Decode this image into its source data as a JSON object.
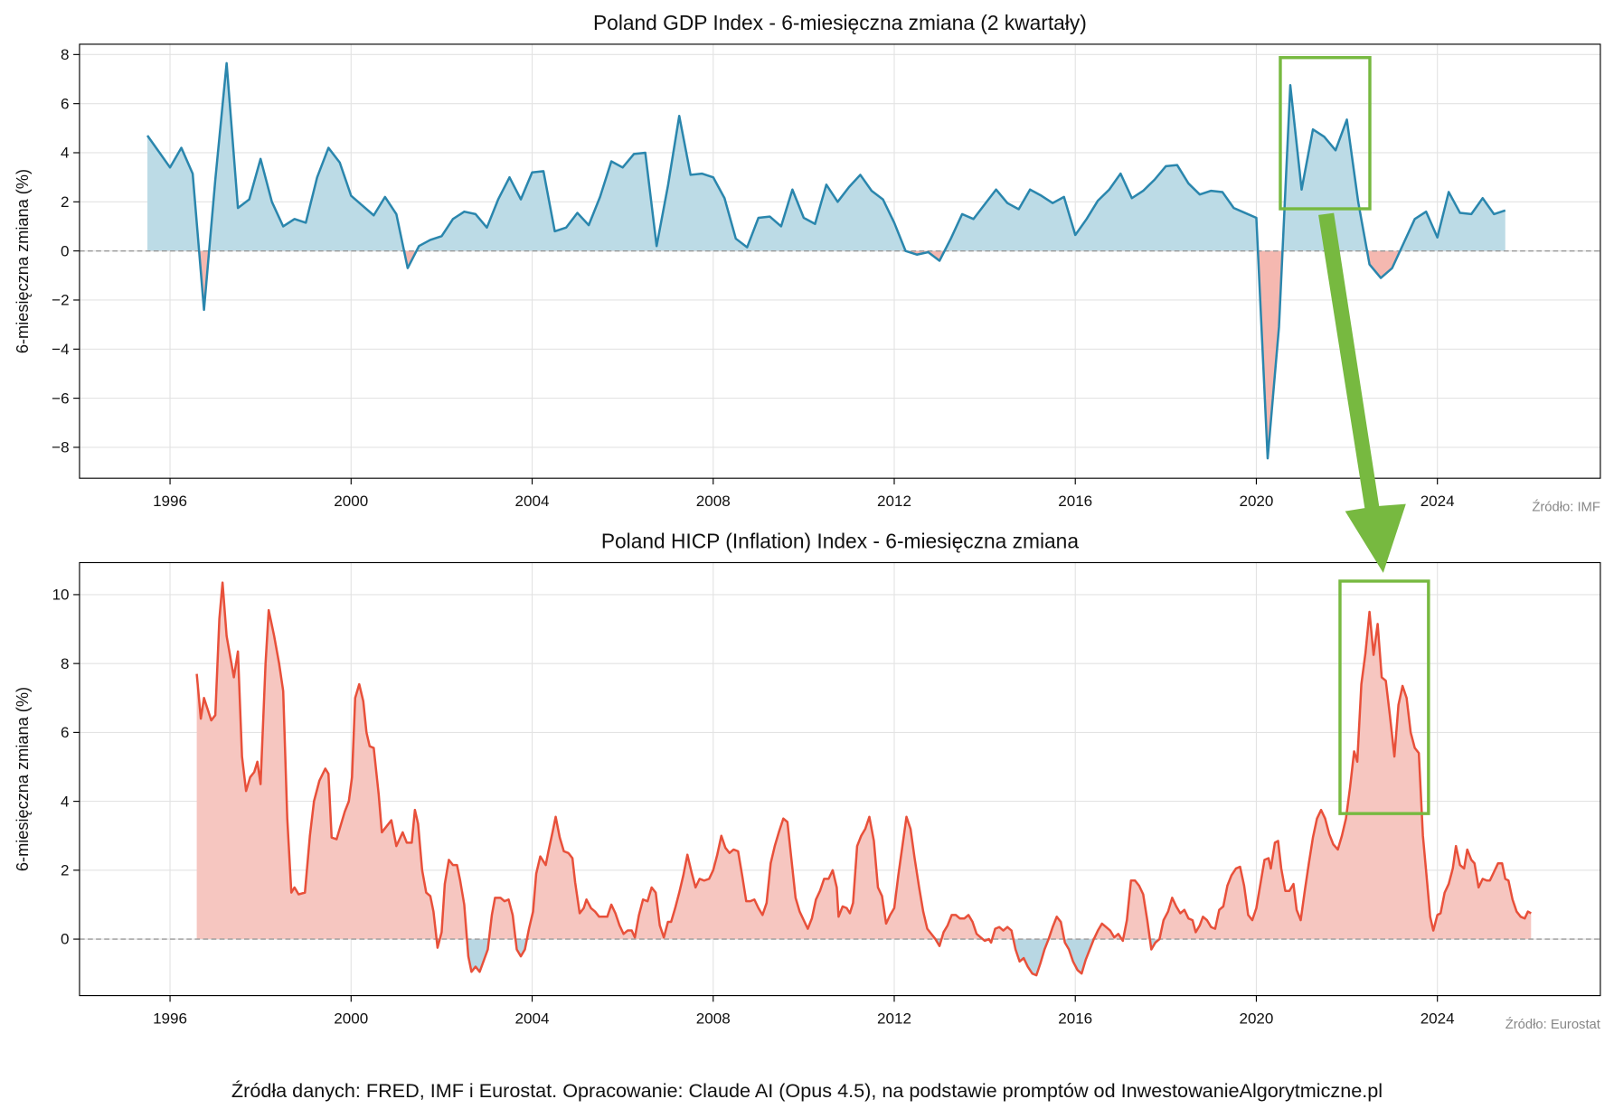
{
  "chart_data": [
    {
      "type": "line",
      "title": "Poland GDP Index - 6-miesięczna zmiana (2 kwartały)",
      "y_label": "6-miesięczna zmiana (%)",
      "source": "Źródło: IMF",
      "color": "#2a86ad",
      "fill_positive": "#bcdbe6",
      "fill_negative": "#f5b8b0",
      "xlim": [
        1994.0,
        2027.6
      ],
      "ylim": [
        -9.26,
        8.42
      ],
      "xticks": [
        1996,
        2000,
        2004,
        2008,
        2012,
        2016,
        2020,
        2024
      ],
      "yticks": [
        {
          "value": -8,
          "label": "−8"
        },
        {
          "value": -6,
          "label": "−6"
        },
        {
          "value": -4,
          "label": "−4"
        },
        {
          "value": -2,
          "label": "−2"
        },
        0,
        2,
        4,
        6,
        8
      ],
      "grid": true,
      "reference_line": 0,
      "x": [
        1995.5,
        1995.75,
        1996,
        1996.25,
        1996.5,
        1996.75,
        1997,
        1997.25,
        1997.5,
        1997.75,
        1998,
        1998.25,
        1998.5,
        1998.75,
        1999,
        1999.25,
        1999.5,
        1999.75,
        2000,
        2000.25,
        2000.5,
        2000.75,
        2001,
        2001.25,
        2001.5,
        2001.75,
        2002,
        2002.25,
        2002.5,
        2002.75,
        2003,
        2003.25,
        2003.5,
        2003.75,
        2004,
        2004.25,
        2004.5,
        2004.75,
        2005,
        2005.25,
        2005.5,
        2005.75,
        2006,
        2006.25,
        2006.5,
        2006.75,
        2007,
        2007.25,
        2007.5,
        2007.75,
        2008,
        2008.25,
        2008.5,
        2008.75,
        2009,
        2009.25,
        2009.5,
        2009.75,
        2010,
        2010.25,
        2010.5,
        2010.75,
        2011,
        2011.25,
        2011.5,
        2011.75,
        2012,
        2012.25,
        2012.5,
        2012.75,
        2013,
        2013.25,
        2013.5,
        2013.75,
        2014,
        2014.25,
        2014.5,
        2014.75,
        2015,
        2015.25,
        2015.5,
        2015.75,
        2016,
        2016.25,
        2016.5,
        2016.75,
        2017,
        2017.25,
        2017.5,
        2017.75,
        2018,
        2018.25,
        2018.5,
        2018.75,
        2019,
        2019.25,
        2019.5,
        2019.75,
        2020,
        2020.25,
        2020.5,
        2020.75,
        2021,
        2021.25,
        2021.5,
        2021.75,
        2022,
        2022.25,
        2022.5,
        2022.75,
        2023,
        2023.25,
        2023.5,
        2023.75,
        2024,
        2024.25,
        2024.5,
        2024.75,
        2025,
        2025.25,
        2025.5
      ],
      "values": [
        4.7,
        4.05,
        3.4,
        4.2,
        3.15,
        -2.4,
        2.9,
        7.65,
        1.75,
        2.1,
        3.75,
        2.0,
        1.0,
        1.3,
        1.15,
        3.0,
        4.2,
        3.6,
        2.25,
        1.85,
        1.45,
        2.2,
        1.5,
        -0.7,
        0.2,
        0.45,
        0.6,
        1.3,
        1.6,
        1.5,
        0.95,
        2.1,
        3.0,
        2.1,
        3.2,
        3.25,
        0.8,
        0.95,
        1.55,
        1.05,
        2.2,
        3.65,
        3.4,
        3.95,
        4.0,
        0.2,
        2.65,
        5.5,
        3.1,
        3.15,
        3.0,
        2.15,
        0.5,
        0.15,
        1.35,
        1.4,
        1.0,
        2.5,
        1.35,
        1.1,
        2.7,
        2.0,
        2.6,
        3.1,
        2.45,
        2.1,
        1.15,
        0.0,
        -0.15,
        -0.05,
        -0.4,
        0.5,
        1.5,
        1.3,
        1.9,
        2.5,
        1.95,
        1.7,
        2.5,
        2.25,
        1.95,
        2.2,
        0.65,
        1.3,
        2.05,
        2.5,
        3.15,
        2.15,
        2.45,
        2.9,
        3.45,
        3.5,
        2.75,
        2.3,
        2.45,
        2.4,
        1.75,
        1.55,
        1.35,
        -8.45,
        -3.1,
        6.75,
        2.5,
        4.95,
        4.65,
        4.1,
        5.35,
        2.0,
        -0.55,
        -1.1,
        -0.7,
        0.3,
        1.3,
        1.6,
        0.55,
        2.4,
        1.55,
        1.5,
        2.15,
        1.5,
        1.65
      ]
    },
    {
      "type": "line",
      "title": "Poland HICP (Inflation) Index - 6-miesięczna zmiana",
      "y_label": "6-miesięczna zmiana (%)",
      "source": "Źródło: Eurostat",
      "color": "#e8503a",
      "fill_positive": "#f6c6c0",
      "fill_negative": "#b8d7e3",
      "xlim": [
        1994.0,
        2027.6
      ],
      "ylim": [
        -1.64,
        10.93
      ],
      "xticks": [
        1996,
        2000,
        2004,
        2008,
        2012,
        2016,
        2020,
        2024
      ],
      "yticks": [
        0,
        2,
        4,
        6,
        8,
        10
      ],
      "grid": true,
      "reference_line": 0,
      "x": [
        1996.59,
        1996.68,
        1996.75,
        1996.91,
        1997.0,
        1997.09,
        1997.16,
        1997.25,
        1997.41,
        1997.5,
        1997.59,
        1997.68,
        1997.77,
        1997.86,
        1997.93,
        1998.0,
        1998.11,
        1998.18,
        1998.3,
        1998.41,
        1998.5,
        1998.59,
        1998.68,
        1998.75,
        1998.84,
        1998.98,
        1999.09,
        1999.18,
        1999.3,
        1999.43,
        1999.5,
        1999.57,
        1999.68,
        1999.77,
        1999.86,
        1999.95,
        2000.02,
        2000.09,
        2000.18,
        2000.27,
        2000.34,
        2000.41,
        2000.5,
        2000.61,
        2000.68,
        2000.77,
        2000.89,
        2001.0,
        2001.14,
        2001.23,
        2001.34,
        2001.41,
        2001.48,
        2001.57,
        2001.66,
        2001.75,
        2001.82,
        2001.91,
        2002.0,
        2002.07,
        2002.16,
        2002.25,
        2002.34,
        2002.41,
        2002.5,
        2002.59,
        2002.66,
        2002.75,
        2002.84,
        2002.91,
        2003.02,
        2003.11,
        2003.18,
        2003.3,
        2003.39,
        2003.48,
        2003.57,
        2003.66,
        2003.75,
        2003.84,
        2003.93,
        2004.02,
        2004.09,
        2004.18,
        2004.3,
        2004.36,
        2004.45,
        2004.52,
        2004.61,
        2004.7,
        2004.8,
        2004.89,
        2004.95,
        2005.05,
        2005.14,
        2005.2,
        2005.3,
        2005.39,
        2005.48,
        2005.66,
        2005.75,
        2005.84,
        2005.93,
        2006.02,
        2006.11,
        2006.2,
        2006.27,
        2006.36,
        2006.45,
        2006.55,
        2006.64,
        2006.73,
        2006.82,
        2006.91,
        2007.0,
        2007.07,
        2007.16,
        2007.25,
        2007.34,
        2007.43,
        2007.52,
        2007.61,
        2007.7,
        2007.8,
        2007.91,
        2008.0,
        2008.09,
        2008.18,
        2008.27,
        2008.36,
        2008.45,
        2008.55,
        2008.64,
        2008.73,
        2008.82,
        2008.91,
        2009.0,
        2009.09,
        2009.18,
        2009.27,
        2009.36,
        2009.45,
        2009.55,
        2009.64,
        2009.73,
        2009.82,
        2009.91,
        2010.0,
        2010.09,
        2010.18,
        2010.27,
        2010.36,
        2010.45,
        2010.55,
        2010.64,
        2010.73,
        2010.77,
        2010.86,
        2010.95,
        2011.02,
        2011.09,
        2011.18,
        2011.27,
        2011.36,
        2011.45,
        2011.55,
        2011.64,
        2011.73,
        2011.82,
        2011.91,
        2012.0,
        2012.09,
        2012.18,
        2012.27,
        2012.36,
        2012.45,
        2012.55,
        2012.64,
        2012.73,
        2012.82,
        2012.91,
        2013.0,
        2013.09,
        2013.18,
        2013.27,
        2013.36,
        2013.45,
        2013.55,
        2013.64,
        2013.73,
        2013.82,
        2013.91,
        2014.0,
        2014.09,
        2014.14,
        2014.23,
        2014.32,
        2014.41,
        2014.5,
        2014.59,
        2014.68,
        2014.77,
        2014.86,
        2014.95,
        2015.05,
        2015.14,
        2015.23,
        2015.32,
        2015.41,
        2015.5,
        2015.59,
        2015.68,
        2015.77,
        2015.86,
        2015.95,
        2016.05,
        2016.14,
        2016.23,
        2016.32,
        2016.41,
        2016.5,
        2016.59,
        2016.68,
        2016.77,
        2016.86,
        2016.95,
        2017.05,
        2017.14,
        2017.23,
        2017.32,
        2017.41,
        2017.5,
        2017.59,
        2017.68,
        2017.77,
        2017.86,
        2017.95,
        2018.05,
        2018.14,
        2018.23,
        2018.32,
        2018.41,
        2018.5,
        2018.59,
        2018.66,
        2018.75,
        2018.82,
        2018.91,
        2019.0,
        2019.09,
        2019.18,
        2019.27,
        2019.36,
        2019.45,
        2019.55,
        2019.64,
        2019.73,
        2019.82,
        2019.91,
        2020.0,
        2020.09,
        2020.18,
        2020.27,
        2020.32,
        2020.41,
        2020.48,
        2020.55,
        2020.64,
        2020.73,
        2020.82,
        2020.89,
        2020.98,
        2021.07,
        2021.16,
        2021.25,
        2021.34,
        2021.43,
        2021.52,
        2021.61,
        2021.7,
        2021.8,
        2021.89,
        2021.98,
        2022.07,
        2022.16,
        2022.23,
        2022.32,
        2022.41,
        2022.5,
        2022.59,
        2022.68,
        2022.77,
        2022.86,
        2022.95,
        2023.05,
        2023.14,
        2023.23,
        2023.32,
        2023.41,
        2023.5,
        2023.59,
        2023.68,
        2023.77,
        2023.84,
        2023.91,
        2024.0,
        2024.07,
        2024.16,
        2024.25,
        2024.34,
        2024.41,
        2024.5,
        2024.59,
        2024.66,
        2024.75,
        2024.82,
        2024.91,
        2025.0,
        2025.09,
        2025.16,
        2025.25,
        2025.34,
        2025.43,
        2025.5,
        2025.57,
        2025.66,
        2025.75,
        2025.84,
        2025.93,
        2026.0,
        2026.07
      ],
      "values": [
        7.7,
        6.4,
        7.0,
        6.35,
        6.5,
        9.3,
        10.35,
        8.8,
        7.6,
        8.35,
        5.3,
        4.3,
        4.7,
        4.85,
        5.15,
        4.5,
        8.0,
        9.55,
        8.8,
        8.0,
        7.2,
        3.5,
        1.35,
        1.5,
        1.3,
        1.35,
        3.0,
        4.0,
        4.6,
        4.95,
        4.8,
        2.95,
        2.9,
        3.3,
        3.7,
        4.0,
        4.7,
        7.0,
        7.4,
        6.9,
        6.0,
        5.6,
        5.55,
        4.2,
        3.1,
        3.25,
        3.45,
        2.7,
        3.1,
        2.8,
        2.8,
        3.75,
        3.35,
        2.0,
        1.35,
        1.25,
        0.8,
        -0.25,
        0.2,
        1.6,
        2.3,
        2.15,
        2.15,
        1.7,
        1.0,
        -0.5,
        -0.95,
        -0.8,
        -0.95,
        -0.7,
        -0.3,
        0.7,
        1.2,
        1.2,
        1.1,
        1.15,
        0.7,
        -0.3,
        -0.5,
        -0.3,
        0.3,
        0.8,
        1.9,
        2.4,
        2.15,
        2.55,
        3.1,
        3.55,
        2.95,
        2.55,
        2.5,
        2.35,
        1.65,
        0.75,
        0.9,
        1.15,
        0.9,
        0.8,
        0.65,
        0.65,
        1.0,
        0.75,
        0.4,
        0.15,
        0.25,
        0.25,
        0.05,
        0.7,
        1.15,
        1.1,
        1.5,
        1.35,
        0.4,
        0.05,
        0.5,
        0.5,
        0.9,
        1.35,
        1.85,
        2.45,
        1.95,
        1.5,
        1.75,
        1.7,
        1.75,
        2.0,
        2.45,
        3.0,
        2.65,
        2.5,
        2.6,
        2.55,
        1.85,
        1.1,
        1.1,
        1.15,
        0.9,
        0.7,
        1.05,
        2.2,
        2.7,
        3.1,
        3.5,
        3.4,
        2.3,
        1.2,
        0.8,
        0.55,
        0.3,
        0.6,
        1.15,
        1.4,
        1.75,
        1.75,
        2.0,
        1.5,
        0.65,
        0.95,
        0.9,
        0.75,
        1.05,
        2.7,
        3.0,
        3.2,
        3.55,
        2.85,
        1.5,
        1.25,
        0.45,
        0.7,
        0.9,
        1.85,
        2.7,
        3.55,
        3.2,
        2.35,
        1.5,
        0.8,
        0.3,
        0.15,
        0.0,
        -0.2,
        0.2,
        0.4,
        0.7,
        0.7,
        0.6,
        0.6,
        0.7,
        0.5,
        0.15,
        0.05,
        -0.05,
        0.0,
        -0.1,
        0.3,
        0.35,
        0.25,
        0.35,
        0.25,
        -0.3,
        -0.65,
        -0.55,
        -0.8,
        -1.0,
        -1.05,
        -0.7,
        -0.3,
        0.0,
        0.35,
        0.65,
        0.5,
        -0.1,
        -0.3,
        -0.65,
        -0.9,
        -1.0,
        -0.6,
        -0.3,
        0.0,
        0.25,
        0.45,
        0.35,
        0.25,
        0.05,
        0.15,
        -0.05,
        0.55,
        1.7,
        1.7,
        1.55,
        1.3,
        0.55,
        -0.3,
        -0.1,
        0.0,
        0.55,
        0.8,
        1.2,
        0.95,
        0.75,
        0.85,
        0.6,
        0.55,
        0.2,
        0.4,
        0.65,
        0.55,
        0.35,
        0.3,
        0.85,
        0.95,
        1.55,
        1.85,
        2.05,
        2.1,
        1.55,
        0.7,
        0.55,
        0.9,
        1.6,
        2.3,
        2.35,
        2.05,
        2.8,
        2.85,
        2.05,
        1.4,
        1.4,
        1.6,
        0.85,
        0.55,
        1.4,
        2.2,
        2.95,
        3.5,
        3.75,
        3.5,
        3.05,
        2.75,
        2.6,
        3.0,
        3.5,
        4.4,
        5.45,
        5.15,
        7.4,
        8.3,
        9.5,
        8.25,
        9.15,
        7.6,
        7.5,
        6.5,
        5.3,
        6.8,
        7.35,
        7.0,
        6.0,
        5.55,
        5.4,
        3.0,
        1.7,
        0.65,
        0.25,
        0.7,
        0.75,
        1.35,
        1.6,
        2.05,
        2.7,
        2.15,
        2.05,
        2.6,
        2.3,
        2.2,
        1.5,
        1.75,
        1.7,
        1.7,
        1.95,
        2.2,
        2.2,
        1.75,
        1.7,
        1.15,
        0.8,
        0.65,
        0.6,
        0.8,
        0.75
      ]
    }
  ],
  "footer": "Źródła danych: FRED, IMF i Eurostat. Opracowanie: Claude AI (Opus 4.5), na podstawie promptów od InwestowanieAlgorytmiczne.pl"
}
